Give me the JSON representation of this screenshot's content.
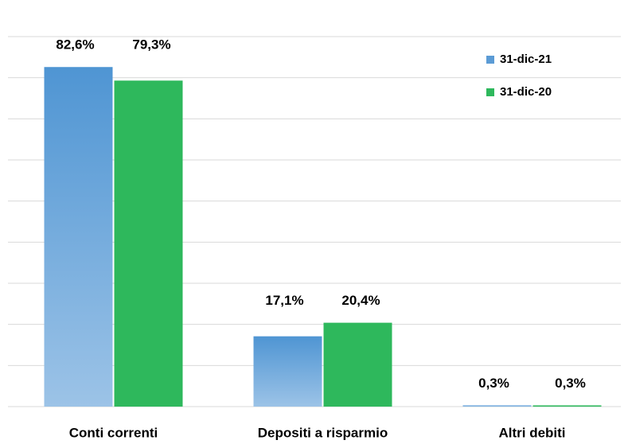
{
  "chart_data": {
    "type": "bar",
    "categories": [
      "Conti correnti",
      "Depositi a risparmio",
      "Altri debiti"
    ],
    "series": [
      {
        "name": "31-dic-21",
        "color": "#5b9bd5",
        "values": [
          82.6,
          17.1,
          0.3
        ],
        "value_labels": [
          "82,6%",
          "17,1%",
          "0,3%"
        ]
      },
      {
        "name": "31-dic-20",
        "color": "#2eb85c",
        "values": [
          79.3,
          20.4,
          0.3
        ],
        "value_labels": [
          "79,3%",
          "20,4%",
          "0,3%"
        ]
      }
    ],
    "ylim": [
      0,
      90
    ],
    "yticks": [
      0,
      10,
      20,
      30,
      40,
      50,
      60,
      70,
      80,
      90
    ],
    "grid": true,
    "legend": "upper right"
  }
}
